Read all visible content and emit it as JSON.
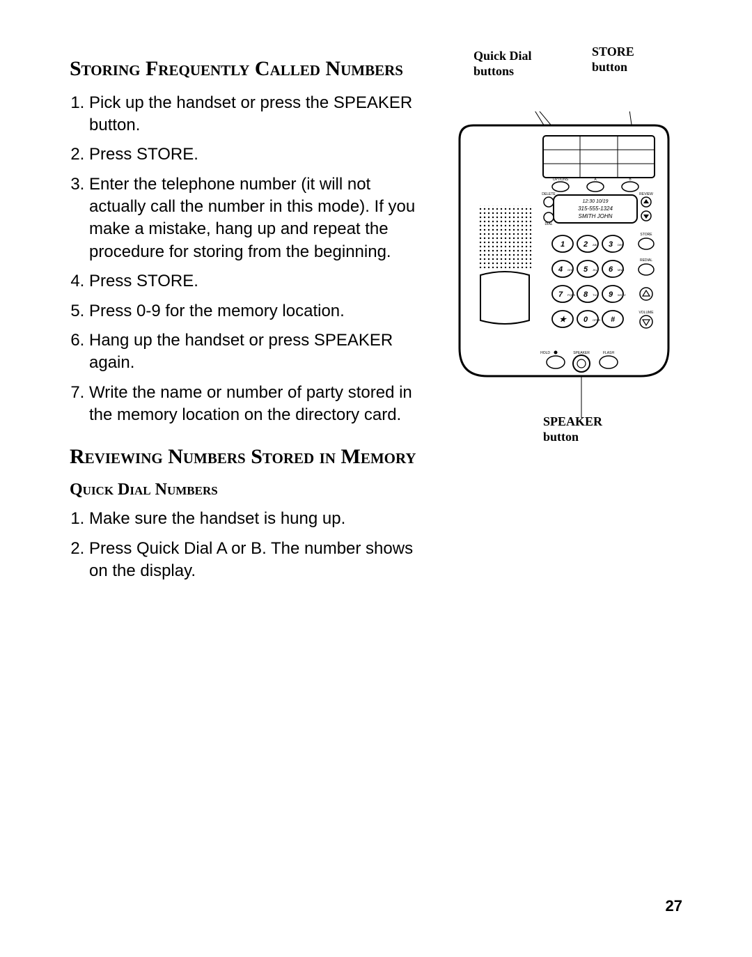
{
  "page_number": "27",
  "sections": {
    "storing": {
      "title": "Storing Frequently Called Numbers",
      "steps": [
        "Pick up the handset or press the SPEAKER button.",
        "Press STORE.",
        "Enter the telephone number (it will not actually call the number in this mode). If you make a mistake, hang up and repeat the procedure for storing from the beginning.",
        "Press STORE.",
        "Press 0-9 for the memory location.",
        "Hang up the handset or press SPEAKER again.",
        "Write the name or number of party stored in the memory location on the directory card."
      ]
    },
    "reviewing": {
      "title": "Reviewing Numbers Stored in Memory",
      "subsection_title": "Quick Dial Numbers",
      "steps": [
        "Make sure the handset is hung up.",
        "Press Quick Dial A or B. The number shows on the display."
      ]
    }
  },
  "figure": {
    "callouts": {
      "quick_dial": "Quick Dial\nbuttons",
      "store": "STORE\nbutton",
      "speaker": "SPEAKER\nbutton"
    },
    "display": {
      "line1": "12:30   10/19",
      "line2": "315-555-1324",
      "line3": "SMITH JOHN"
    },
    "labels": {
      "options": "OPTIONS",
      "a": "A",
      "b": "B",
      "delete": "DELETE",
      "review": "REVIEW",
      "dial": "DIAL",
      "store_side": "STORE",
      "redial": "REDIAL",
      "volume": "VOLUME",
      "hold": "HOLD",
      "speaker_lbl": "SPEAKER",
      "flash": "FLASH"
    },
    "keys": [
      {
        "digit": "1",
        "letters": ""
      },
      {
        "digit": "2",
        "letters": "ABC"
      },
      {
        "digit": "3",
        "letters": "DEF"
      },
      {
        "digit": "4",
        "letters": "GHI"
      },
      {
        "digit": "5",
        "letters": "JKL"
      },
      {
        "digit": "6",
        "letters": "MNO"
      },
      {
        "digit": "7",
        "letters": "PQRS"
      },
      {
        "digit": "8",
        "letters": "TUV"
      },
      {
        "digit": "9",
        "letters": "WXYZ"
      },
      {
        "digit": "★",
        "letters": ""
      },
      {
        "digit": "0",
        "letters": "OPER"
      },
      {
        "digit": "#",
        "letters": ""
      }
    ],
    "colors": {
      "stroke": "#000000",
      "fill_body": "#ffffff",
      "fill_display": "#ffffff"
    }
  }
}
